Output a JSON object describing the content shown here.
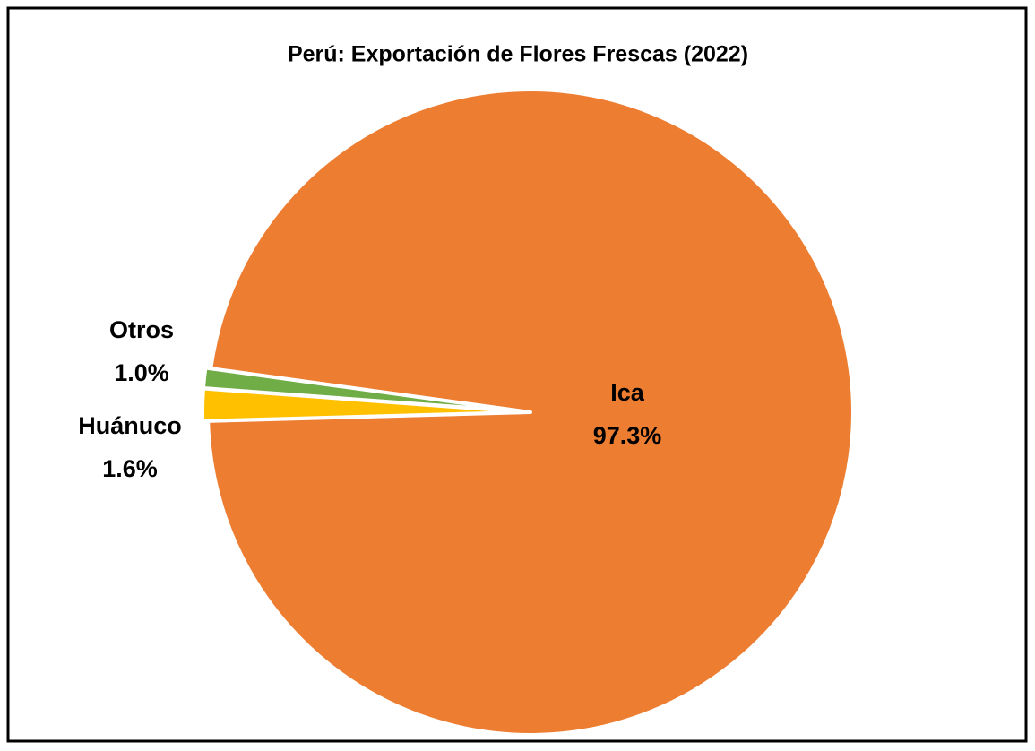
{
  "chart_data": {
    "type": "pie",
    "title": "Perú: Exportación de Flores Frescas (2022)",
    "categories": [
      "Ica",
      "Huánuco",
      "Otros"
    ],
    "values": [
      97.3,
      1.6,
      1.0
    ],
    "value_labels": [
      "97.3%",
      "1.6%",
      "1.0%"
    ],
    "colors": [
      "#ed7d31",
      "#ffc000",
      "#70ad47"
    ]
  }
}
